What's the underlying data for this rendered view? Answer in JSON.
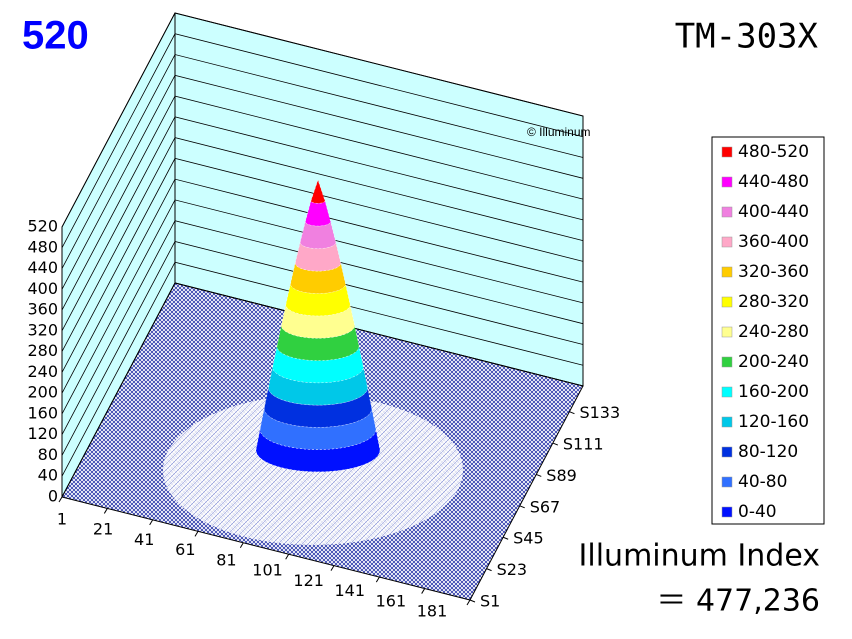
{
  "chart_data": {
    "type": "surface3d",
    "title": "TM-303X",
    "max_value": 520,
    "watermark": "© Illuminum",
    "xlim": [
      1,
      181
    ],
    "xticks": [
      1,
      21,
      41,
      61,
      81,
      101,
      121,
      141,
      161,
      181
    ],
    "ylim": [
      1,
      151
    ],
    "yticks": [
      {
        "value": 1,
        "label": "S1"
      },
      {
        "value": 23,
        "label": "S23"
      },
      {
        "value": 45,
        "label": "S45"
      },
      {
        "value": 67,
        "label": "S67"
      },
      {
        "value": 89,
        "label": "S89"
      },
      {
        "value": 111,
        "label": "S111"
      },
      {
        "value": 133,
        "label": "S133"
      }
    ],
    "zlim": [
      0,
      520
    ],
    "zticks": [
      0,
      40,
      80,
      120,
      160,
      200,
      240,
      280,
      320,
      360,
      400,
      440,
      480,
      520
    ],
    "peak": {
      "x": 91,
      "y": 70
    },
    "bands": [
      {
        "label": "480-520",
        "range": [
          480,
          520
        ],
        "color": "#ff0000"
      },
      {
        "label": "440-480",
        "range": [
          440,
          480
        ],
        "color": "#ff00ff"
      },
      {
        "label": "400-440",
        "range": [
          400,
          440
        ],
        "color": "#f080e0"
      },
      {
        "label": "360-400",
        "range": [
          360,
          400
        ],
        "color": "#ffa8c8"
      },
      {
        "label": "320-360",
        "range": [
          320,
          360
        ],
        "color": "#ffcc00"
      },
      {
        "label": "280-320",
        "range": [
          280,
          320
        ],
        "color": "#ffff00"
      },
      {
        "label": "240-280",
        "range": [
          240,
          280
        ],
        "color": "#ffff90"
      },
      {
        "label": "200-240",
        "range": [
          200,
          240
        ],
        "color": "#30d040"
      },
      {
        "label": "160-200",
        "range": [
          160,
          200
        ],
        "color": "#00ffff"
      },
      {
        "label": "120-160",
        "range": [
          120,
          160
        ],
        "color": "#00c8e8"
      },
      {
        "label": "80-120",
        "range": [
          80,
          120
        ],
        "color": "#0030e0"
      },
      {
        "label": "40-80",
        "range": [
          40,
          80
        ],
        "color": "#3070ff"
      },
      {
        "label": "0-40",
        "range": [
          0,
          40
        ],
        "color": "#0010ff"
      }
    ],
    "index_title": "Illuminum Index",
    "index": {
      "value": 477236,
      "label": "＝ 477,236"
    }
  }
}
